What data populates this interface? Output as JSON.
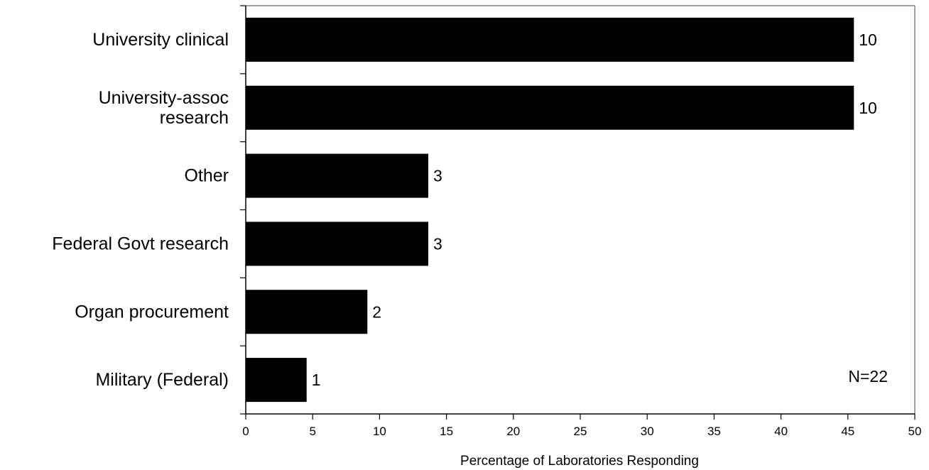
{
  "chart_data": {
    "type": "bar",
    "orientation": "horizontal",
    "categories": [
      [
        "University clinical"
      ],
      [
        "University-assoc",
        "research"
      ],
      [
        "Other"
      ],
      [
        "Federal Govt research"
      ],
      [
        "Organ procurement"
      ],
      [
        "Military (Federal)"
      ]
    ],
    "values": [
      45.45,
      45.45,
      13.64,
      13.64,
      9.09,
      4.55
    ],
    "data_labels": [
      "10",
      "10",
      "3",
      "3",
      "2",
      "1"
    ],
    "xlabel": "Percentage of Laboratories Responding",
    "xlim": [
      0,
      50
    ],
    "xticks": [
      "0",
      "5",
      "10",
      "15",
      "20",
      "25",
      "30",
      "35",
      "40",
      "45",
      "50"
    ],
    "annotation": "N=22",
    "grid": false,
    "bar_color": "#000000",
    "frame_color": "#808080"
  }
}
